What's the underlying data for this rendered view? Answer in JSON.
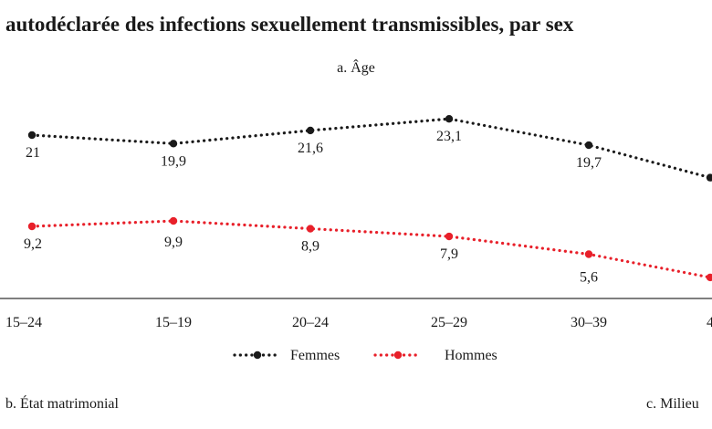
{
  "title": "e autodéclarée des infections sexuellement transmissibles, par sex",
  "panel_a_label": "a. Âge",
  "panel_b_label": "b. État matrimonial",
  "panel_c_label": "c. Milieu",
  "colors": {
    "femmes": "#1a1a1a",
    "hommes": "#e8202a",
    "axis": "#333333"
  },
  "chart_data": {
    "type": "line",
    "title": "a. Âge",
    "categories": [
      "15–24",
      "15–19",
      "20–24",
      "25–29",
      "30–39",
      "4"
    ],
    "series": [
      {
        "name": "Femmes",
        "values": [
          21,
          19.9,
          21.6,
          23.1,
          19.7,
          15.5
        ],
        "labels": [
          "21",
          "19,9",
          "21,6",
          "23,1",
          "19,7",
          ""
        ]
      },
      {
        "name": "Hommes",
        "values": [
          9.2,
          9.9,
          8.9,
          7.9,
          5.6,
          2.6
        ],
        "labels": [
          "9,2",
          "9,9",
          "8,9",
          "7,9",
          "5,6",
          ""
        ]
      }
    ],
    "xlabel": "",
    "ylabel": "",
    "grid": false,
    "legend": "bottom-center"
  }
}
